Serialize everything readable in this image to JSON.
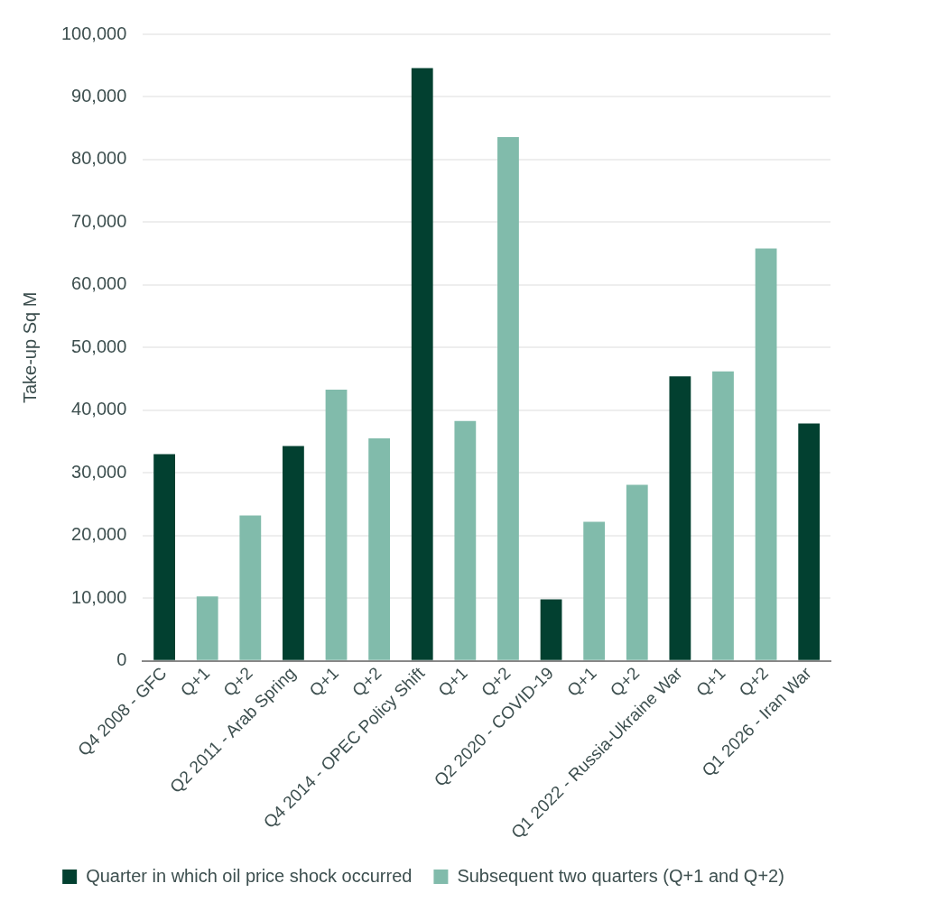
{
  "chart_data": {
    "type": "bar",
    "ylabel": "Take-up Sq M",
    "categories": [
      "Q4 2008 - GFC",
      "Q+1",
      "Q+2",
      "Q2 2011 - Arab Spring",
      "Q+1",
      "Q+2",
      "Q4 2014 - OPEC Policy Shift",
      "Q+1",
      "Q+2",
      "Q2 2020 - COVID-19",
      "Q+1",
      "Q+2",
      "Q1 2022 - Russia-Ukraine War",
      "Q+1",
      "Q+2",
      "Q1 2026 - Iran War"
    ],
    "series": [
      {
        "name": "Quarter in which oil price shock occurred",
        "color": "#024030",
        "values": [
          33000,
          null,
          null,
          34300,
          null,
          null,
          94600,
          null,
          null,
          9800,
          null,
          null,
          45400,
          null,
          null,
          37900
        ]
      },
      {
        "name": "Subsequent two quarters (Q+1 and Q+2)",
        "color": "#81bbab",
        "values": [
          null,
          10300,
          23200,
          null,
          43300,
          35500,
          null,
          38300,
          83600,
          null,
          22200,
          28100,
          null,
          46200,
          65800,
          null
        ]
      }
    ],
    "ylim": [
      0,
      100000
    ],
    "yticks": [
      0,
      {
        "value": 10000,
        "label": "10,000"
      },
      {
        "value": 20000,
        "label": "20,000"
      },
      {
        "value": 30000,
        "label": "30,000"
      },
      {
        "value": 40000,
        "label": "40,000"
      },
      {
        "value": 50000,
        "label": "50,000"
      },
      {
        "value": 60000,
        "label": "60,000"
      },
      {
        "value": 70000,
        "label": "70,000"
      },
      {
        "value": 80000,
        "label": "80,000"
      },
      {
        "value": 90000,
        "label": "90,000"
      },
      {
        "value": 100000,
        "label": "100,000"
      }
    ],
    "grid": "y",
    "legend": "bottom"
  }
}
